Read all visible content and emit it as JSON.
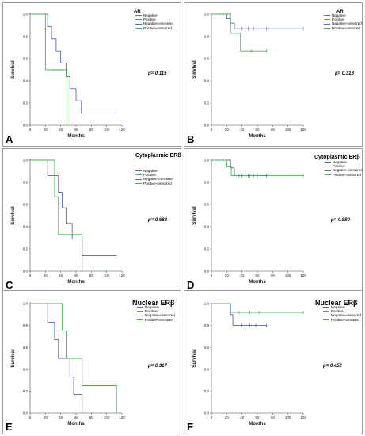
{
  "colors": {
    "negative": "#5a64b0",
    "positive": "#46b04a"
  },
  "chart_data": [
    {
      "type": "line",
      "panel_label": "A",
      "title": "AR",
      "p_value": "p= 0.115",
      "ylabel": "Survival",
      "xlabel": "Months",
      "xlim": [
        0,
        120
      ],
      "ylim": [
        0,
        1.0
      ],
      "xticks": [
        "0",
        "20",
        "40",
        "60",
        "80",
        "100",
        "120"
      ],
      "yticks": [
        "0.0",
        "0.2",
        "0.4",
        "0.6",
        "0.8",
        "1.0"
      ],
      "legend": [
        "Negative",
        "Positive",
        "Negative-censored",
        "Positive-censored"
      ],
      "series": [
        {
          "name": "Negative",
          "color": "negative",
          "x": [
            0,
            23,
            28,
            34,
            40,
            47,
            52,
            60,
            67,
            113
          ],
          "y": [
            1.0,
            0.89,
            0.78,
            0.67,
            0.56,
            0.44,
            0.33,
            0.22,
            0.11,
            0.11
          ],
          "censored": []
        },
        {
          "name": "Positive",
          "color": "positive",
          "x": [
            0,
            20,
            48,
            48
          ],
          "y": [
            1.0,
            0.5,
            0.5,
            0.0
          ],
          "censored": [
            [
              0,
              1.0
            ]
          ]
        }
      ]
    },
    {
      "type": "line",
      "panel_label": "B",
      "title": "AR",
      "p_value": "p= 0.319",
      "ylabel": "Survival",
      "xlabel": "Months",
      "xlim": [
        0,
        120
      ],
      "ylim": [
        0,
        1.0
      ],
      "xticks": [
        "0",
        "20",
        "40",
        "60",
        "80",
        "100",
        "120"
      ],
      "yticks": [
        "0.0",
        "0.2",
        "0.4",
        "0.6",
        "0.8",
        "1.0"
      ],
      "legend": [
        "Negative",
        "Positive",
        "Negative-censored",
        "Positive-censored"
      ],
      "series": [
        {
          "name": "Negative",
          "color": "negative",
          "x": [
            0,
            20,
            25,
            30,
            120
          ],
          "y": [
            1.0,
            0.96,
            0.92,
            0.87,
            0.87
          ],
          "censored": [
            [
              40,
              0.87
            ],
            [
              48,
              0.87
            ],
            [
              55,
              0.87
            ],
            [
              72,
              0.87
            ],
            [
              120,
              0.87
            ]
          ]
        },
        {
          "name": "Positive",
          "color": "positive",
          "x": [
            0,
            25,
            32,
            38,
            72
          ],
          "y": [
            1.0,
            0.83,
            0.83,
            0.67,
            0.67
          ],
          "censored": [
            [
              52,
              0.67
            ],
            [
              72,
              0.67
            ]
          ]
        }
      ]
    },
    {
      "type": "line",
      "panel_label": "C",
      "title": "Cytoplasmic ERß",
      "p_value": "p= 0.688",
      "ylabel": "Survival",
      "xlabel": "Months",
      "xlim": [
        0,
        120
      ],
      "ylim": [
        0,
        1.0
      ],
      "xticks": [
        "0",
        "20",
        "40",
        "60",
        "80",
        "100",
        "120"
      ],
      "yticks": [
        "0.0",
        "0.2",
        "0.4",
        "0.6",
        "0.8",
        "1.0"
      ],
      "legend": [
        "Negative",
        "Positive",
        "Negative-censored",
        "Positive-censored"
      ],
      "series": [
        {
          "name": "Negative",
          "color": "negative",
          "x": [
            0,
            23,
            37,
            42,
            47,
            55,
            68,
            113
          ],
          "y": [
            1.0,
            0.86,
            0.71,
            0.57,
            0.43,
            0.29,
            0.14,
            0.14
          ],
          "censored": []
        },
        {
          "name": "Positive",
          "color": "positive",
          "x": [
            0,
            32,
            37,
            68,
            68
          ],
          "y": [
            1.0,
            0.67,
            0.33,
            0.33,
            0.0
          ],
          "censored": [
            [
              0,
              1.0
            ]
          ]
        }
      ]
    },
    {
      "type": "line",
      "panel_label": "D",
      "title": "Cytoplasmic ERβ",
      "p_value": "p= 0.980",
      "ylabel": "Survival",
      "xlabel": "Months",
      "xlim": [
        0,
        120
      ],
      "ylim": [
        0,
        1.0
      ],
      "xticks": [
        "0",
        "20",
        "40",
        "60",
        "80",
        "100",
        "120"
      ],
      "yticks": [
        "0.0",
        "0.2",
        "0.4",
        "0.6",
        "0.8",
        "1.0"
      ],
      "legend": [
        "Negative",
        "Positive",
        "Negative-censored",
        "Positive-censored"
      ],
      "series": [
        {
          "name": "Negative",
          "color": "negative",
          "x": [
            0,
            25,
            30,
            72
          ],
          "y": [
            1.0,
            0.93,
            0.86,
            0.86
          ],
          "censored": [
            [
              40,
              0.86
            ],
            [
              48,
              0.86
            ],
            [
              55,
              0.86
            ],
            [
              72,
              0.86
            ]
          ]
        },
        {
          "name": "Positive",
          "color": "positive",
          "x": [
            0,
            20,
            26,
            120
          ],
          "y": [
            1.0,
            0.94,
            0.86,
            0.86
          ],
          "censored": [
            [
              36,
              0.86
            ],
            [
              50,
              0.86
            ],
            [
              60,
              0.86
            ],
            [
              120,
              0.86
            ]
          ]
        }
      ]
    },
    {
      "type": "line",
      "panel_label": "E",
      "title": "Nuclear ERβ",
      "p_value": "p= 0.317",
      "ylabel": "Survival",
      "xlabel": "Months",
      "xlim": [
        0,
        120
      ],
      "ylim": [
        0,
        1.0
      ],
      "xticks": [
        "0",
        "20",
        "40",
        "60",
        "80",
        "100",
        "120"
      ],
      "yticks": [
        "0.0",
        "0.2",
        "0.4",
        "0.6",
        "0.8",
        "1.0"
      ],
      "legend": [
        "Negative",
        "Positive",
        "Negative-censored",
        "Positive-censored"
      ],
      "series": [
        {
          "name": "Negative",
          "color": "negative",
          "x": [
            0,
            23,
            32,
            37,
            52,
            57,
            62,
            68,
            68
          ],
          "y": [
            1.0,
            0.83,
            0.67,
            0.5,
            0.33,
            0.17,
            0.17,
            0.17,
            0.0
          ],
          "censored": []
        },
        {
          "name": "Positive",
          "color": "positive",
          "x": [
            0,
            42,
            47,
            52,
            68,
            113,
            113
          ],
          "y": [
            1.0,
            0.75,
            0.5,
            0.5,
            0.25,
            0.25,
            0.0
          ],
          "censored": [
            [
              0,
              1.0
            ]
          ]
        }
      ]
    },
    {
      "type": "line",
      "panel_label": "F",
      "title": "Nuclear ERβ",
      "p_value": "p= 0.452",
      "ylabel": "Survival",
      "xlabel": "Months",
      "xlim": [
        0,
        120
      ],
      "ylim": [
        0,
        1.0
      ],
      "xticks": [
        "0",
        "20",
        "40",
        "60",
        "80",
        "100",
        "120"
      ],
      "yticks": [
        "0.0",
        "0.2",
        "0.4",
        "0.6",
        "0.8",
        "1.0"
      ],
      "legend": [
        "Negative",
        "Positive",
        "Negative-censored",
        "Positive-censored"
      ],
      "series": [
        {
          "name": "Negative",
          "color": "negative",
          "x": [
            0,
            25,
            28,
            32,
            72
          ],
          "y": [
            1.0,
            0.9,
            0.8,
            0.8,
            0.8
          ],
          "censored": [
            [
              40,
              0.8
            ],
            [
              50,
              0.8
            ],
            [
              58,
              0.8
            ],
            [
              72,
              0.8
            ]
          ]
        },
        {
          "name": "Positive",
          "color": "positive",
          "x": [
            0,
            25,
            30,
            120
          ],
          "y": [
            1.0,
            0.92,
            0.92,
            0.92
          ],
          "censored": [
            [
              36,
              0.92
            ],
            [
              50,
              0.92
            ],
            [
              62,
              0.92
            ],
            [
              120,
              0.92
            ]
          ]
        }
      ]
    }
  ]
}
